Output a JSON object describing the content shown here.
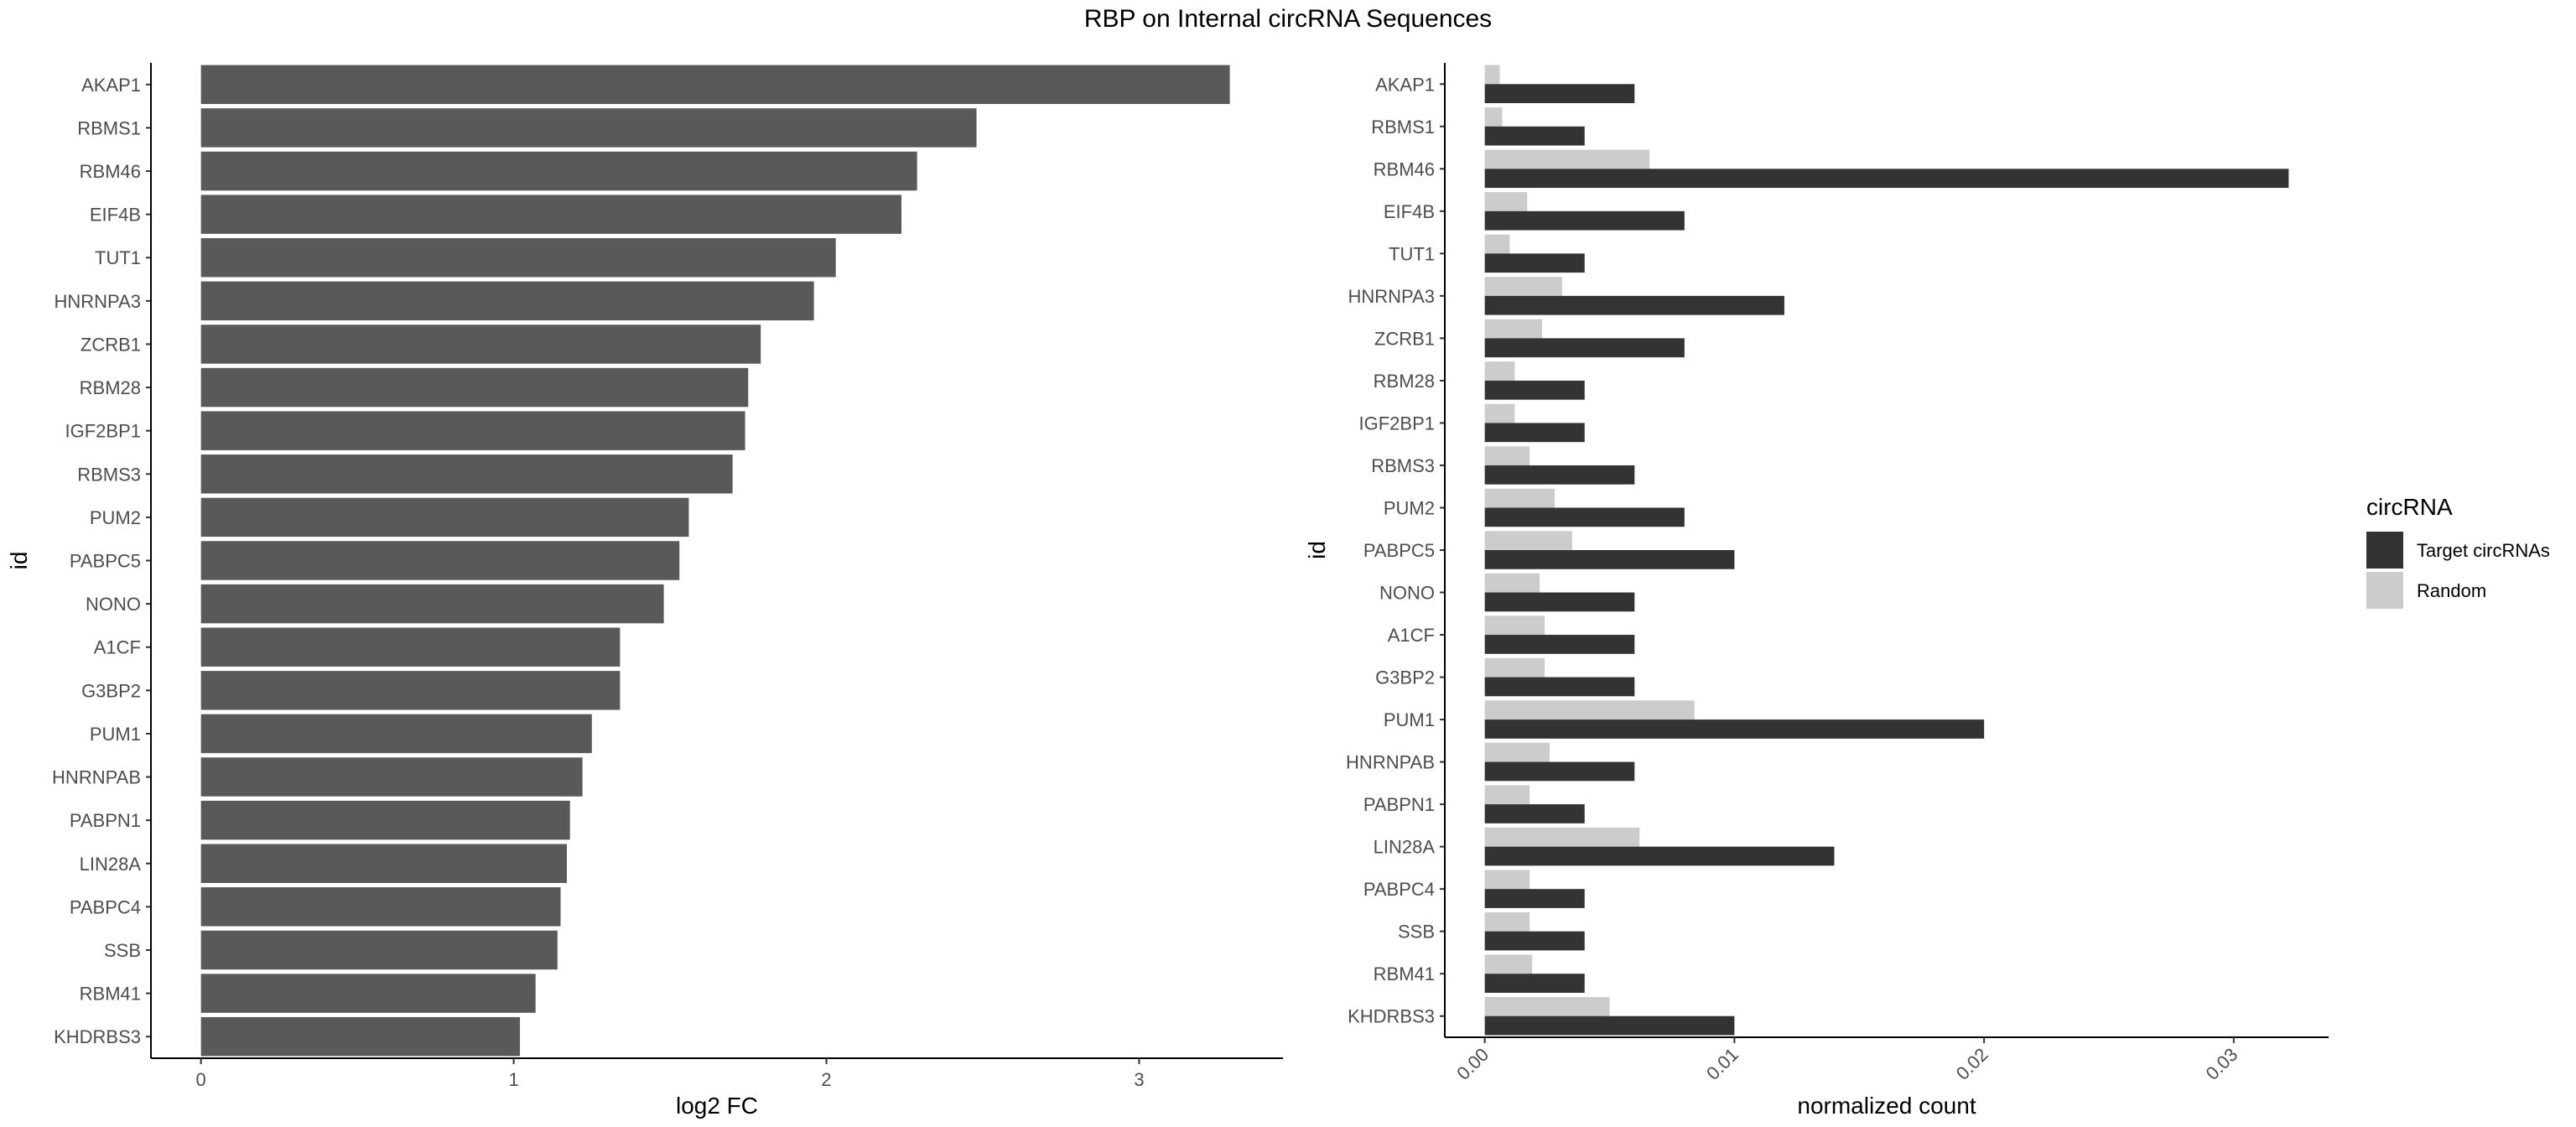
{
  "title": "RBP on Internal circRNA Sequences",
  "colors": {
    "left_bar": "#595959",
    "target": "#333333",
    "random": "#cccccc",
    "axis": "#000000"
  },
  "chart_data": [
    {
      "type": "bar",
      "orientation": "horizontal",
      "categories": [
        "AKAP1",
        "RBMS1",
        "RBM46",
        "EIF4B",
        "TUT1",
        "HNRNPA3",
        "ZCRB1",
        "RBM28",
        "IGF2BP1",
        "RBMS3",
        "PUM2",
        "PABPC5",
        "NONO",
        "A1CF",
        "G3BP2",
        "PUM1",
        "HNRNPAB",
        "PABPN1",
        "LIN28A",
        "PABPC4",
        "SSB",
        "RBM41",
        "KHDRBS3"
      ],
      "values": [
        3.29,
        2.48,
        2.29,
        2.24,
        2.03,
        1.96,
        1.79,
        1.75,
        1.74,
        1.7,
        1.56,
        1.53,
        1.48,
        1.34,
        1.34,
        1.25,
        1.22,
        1.18,
        1.17,
        1.15,
        1.14,
        1.07,
        1.02
      ],
      "xlabel": "log2 FC",
      "ylabel": "id",
      "xlim": [
        -0.16,
        3.46
      ],
      "xticks": [
        "0",
        "1",
        "2",
        "3"
      ],
      "grid": false
    },
    {
      "type": "bar",
      "orientation": "horizontal",
      "categories": [
        "AKAP1",
        "RBMS1",
        "RBM46",
        "EIF4B",
        "TUT1",
        "HNRNPA3",
        "ZCRB1",
        "RBM28",
        "IGF2BP1",
        "RBMS3",
        "PUM2",
        "PABPC5",
        "NONO",
        "A1CF",
        "G3BP2",
        "PUM1",
        "HNRNPAB",
        "PABPN1",
        "LIN28A",
        "PABPC4",
        "SSB",
        "RBM41",
        "KHDRBS3"
      ],
      "series": [
        {
          "name": "Target circRNAs",
          "values": [
            0.006,
            0.004,
            0.0322,
            0.008,
            0.004,
            0.012,
            0.008,
            0.004,
            0.004,
            0.006,
            0.008,
            0.01,
            0.006,
            0.006,
            0.006,
            0.02,
            0.006,
            0.004,
            0.014,
            0.004,
            0.004,
            0.004,
            0.01
          ]
        },
        {
          "name": "Random",
          "values": [
            0.0006,
            0.0007,
            0.0066,
            0.0017,
            0.001,
            0.0031,
            0.0023,
            0.0012,
            0.0012,
            0.0018,
            0.0028,
            0.0035,
            0.0022,
            0.0024,
            0.0024,
            0.0084,
            0.0026,
            0.0018,
            0.0062,
            0.0018,
            0.0018,
            0.0019,
            0.005
          ]
        }
      ],
      "xlabel": "normalized count",
      "ylabel": "id",
      "xlim": [
        -0.0016,
        0.0338
      ],
      "xticks": [
        "0.00",
        "0.01",
        "0.02",
        "0.03"
      ],
      "grid": false,
      "legend": {
        "title": "circRNA",
        "placement": "right"
      }
    }
  ]
}
